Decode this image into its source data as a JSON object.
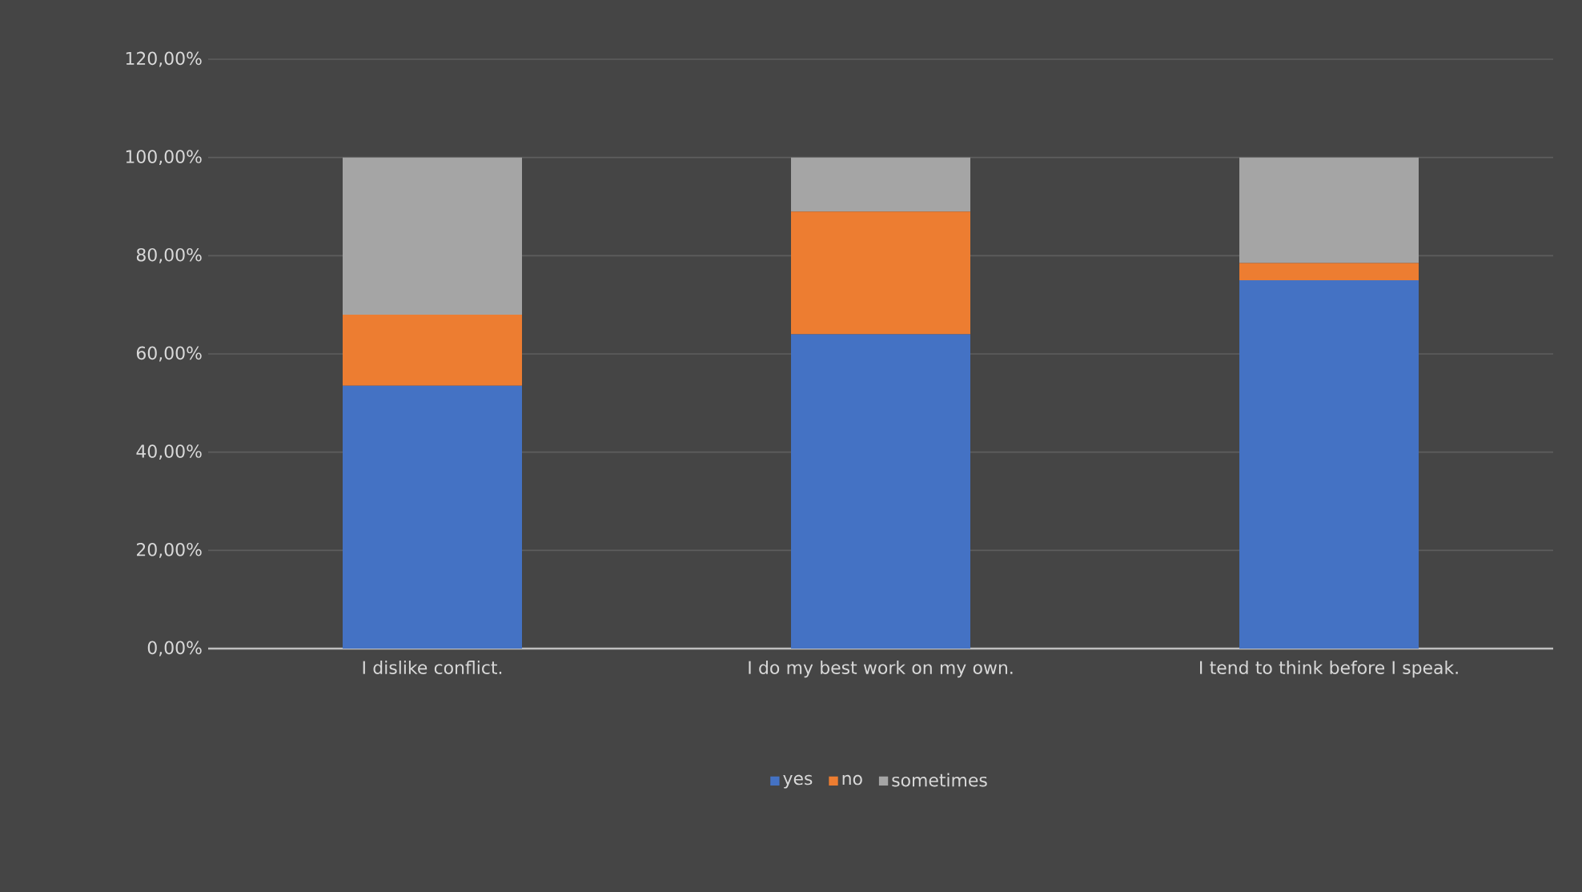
{
  "chart_data": {
    "type": "bar",
    "stacked": true,
    "categories": [
      "I dislike conflict.",
      "I do my best work on my own.",
      "I tend to think before I speak."
    ],
    "series": [
      {
        "name": "yes",
        "color": "#4472c4",
        "values": [
          53.5,
          64,
          75
        ]
      },
      {
        "name": "no",
        "color": "#ed7d31",
        "values": [
          14.5,
          25,
          3.5
        ]
      },
      {
        "name": "sometimes",
        "color": "#a5a5a5",
        "values": [
          32,
          11,
          21.5
        ]
      }
    ],
    "ylim": [
      0,
      120
    ],
    "yticks": [
      {
        "value": 0,
        "label": "0,00%"
      },
      {
        "value": 20,
        "label": "20,00%"
      },
      {
        "value": 40,
        "label": "40,00%"
      },
      {
        "value": 60,
        "label": "60,00%"
      },
      {
        "value": 80,
        "label": "80,00%"
      },
      {
        "value": 100,
        "label": "100,00%"
      },
      {
        "value": 120,
        "label": "120,00%"
      }
    ],
    "grid": "y",
    "legend": "bottom"
  }
}
